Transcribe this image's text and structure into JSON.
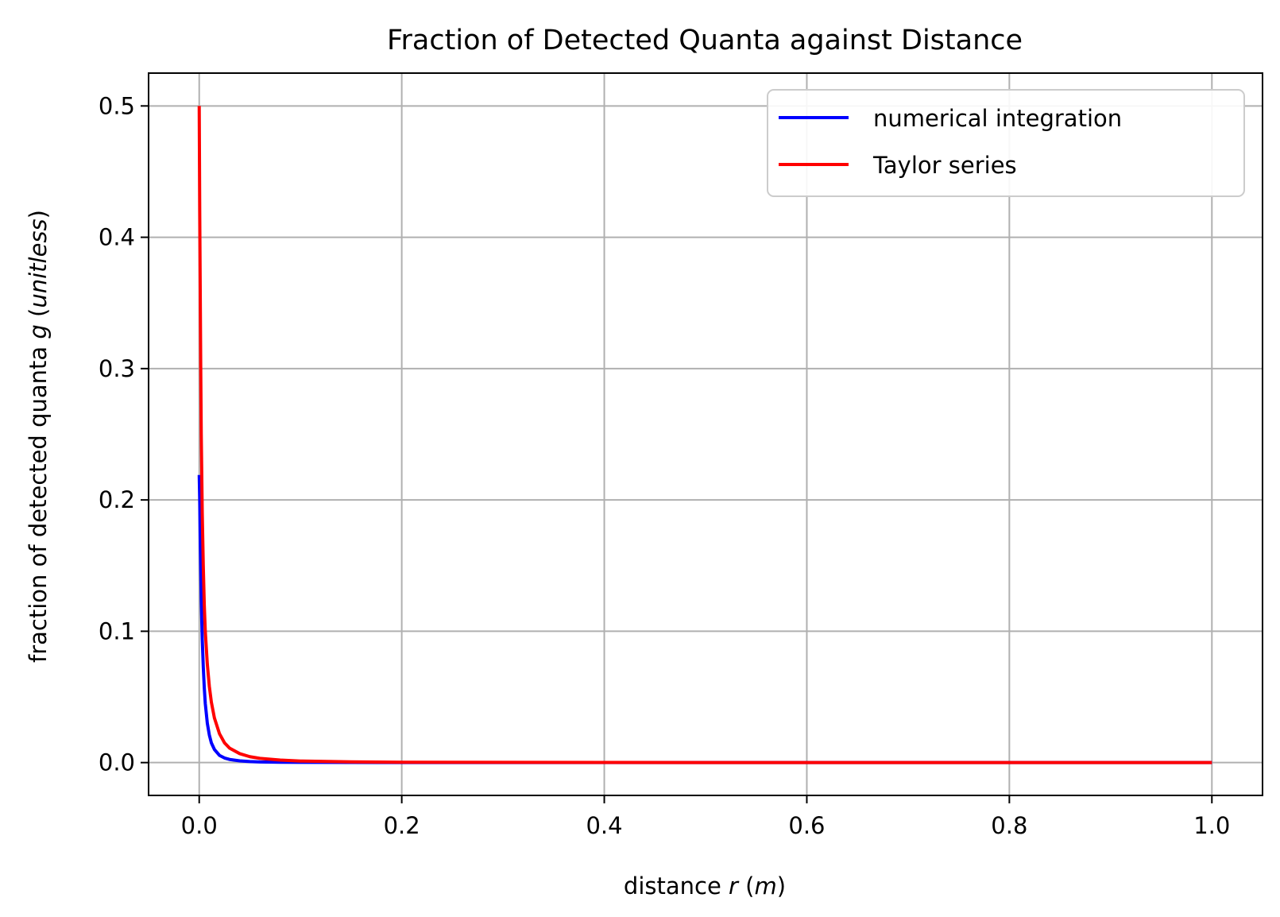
{
  "chart_data": {
    "type": "line",
    "title": "Fraction of Detected Quanta against Distance",
    "xlabel": {
      "prefix": "distance ",
      "symbol": "r",
      "unit_open": " (",
      "unit": "m",
      "unit_close": ")"
    },
    "ylabel": {
      "prefix": "fraction of detected quanta ",
      "symbol": "g",
      "unit_open": " (",
      "unit": "unitless",
      "unit_close": ")"
    },
    "xlim": [
      -0.05,
      1.05
    ],
    "ylim": [
      -0.025,
      0.525
    ],
    "xticks": [
      0.0,
      0.2,
      0.4,
      0.6,
      0.8,
      1.0
    ],
    "xtick_labels": [
      "0.0",
      "0.2",
      "0.4",
      "0.6",
      "0.8",
      "1.0"
    ],
    "yticks": [
      0.0,
      0.1,
      0.2,
      0.3,
      0.4,
      0.5
    ],
    "ytick_labels": [
      "0.0",
      "0.1",
      "0.2",
      "0.3",
      "0.4",
      "0.5"
    ],
    "grid": true,
    "legend_position": "top-right",
    "series": [
      {
        "name": "numerical integration",
        "color": "#0000ff",
        "x": [
          0.0,
          0.0005,
          0.001,
          0.002,
          0.003,
          0.004,
          0.005,
          0.006,
          0.008,
          0.01,
          0.012,
          0.015,
          0.02,
          0.025,
          0.03,
          0.04,
          0.05,
          0.06,
          0.08,
          0.1,
          0.15,
          0.2,
          0.3,
          0.4,
          0.5,
          0.6,
          0.7,
          0.8,
          0.9,
          1.0
        ],
        "y": [
          0.219,
          0.2,
          0.17,
          0.124,
          0.094,
          0.073,
          0.057,
          0.045,
          0.03,
          0.021,
          0.015,
          0.01,
          0.0055,
          0.0035,
          0.0024,
          0.0013,
          0.0008,
          0.0005,
          0.0003,
          0.0002,
          0.0001,
          5e-05,
          2e-05,
          1e-05,
          0.0,
          0.0,
          0.0,
          0.0,
          0.0,
          0.0
        ]
      },
      {
        "name": "Taylor series",
        "color": "#ff0000",
        "x": [
          0.0,
          0.0005,
          0.001,
          0.0015,
          0.002,
          0.003,
          0.004,
          0.005,
          0.006,
          0.008,
          0.01,
          0.012,
          0.015,
          0.02,
          0.025,
          0.03,
          0.04,
          0.05,
          0.06,
          0.08,
          0.1,
          0.15,
          0.2,
          0.3,
          0.4,
          0.5,
          0.6,
          0.7,
          0.8,
          0.9,
          1.0
        ],
        "y": [
          0.5,
          0.42,
          0.36,
          0.3,
          0.25,
          0.19,
          0.15,
          0.12,
          0.1,
          0.075,
          0.058,
          0.046,
          0.034,
          0.022,
          0.015,
          0.011,
          0.0068,
          0.0045,
          0.0032,
          0.0019,
          0.0012,
          0.0006,
          0.0003,
          0.00015,
          8e-05,
          5e-05,
          3e-05,
          2e-05,
          1e-05,
          1e-05,
          0.0
        ]
      }
    ]
  }
}
